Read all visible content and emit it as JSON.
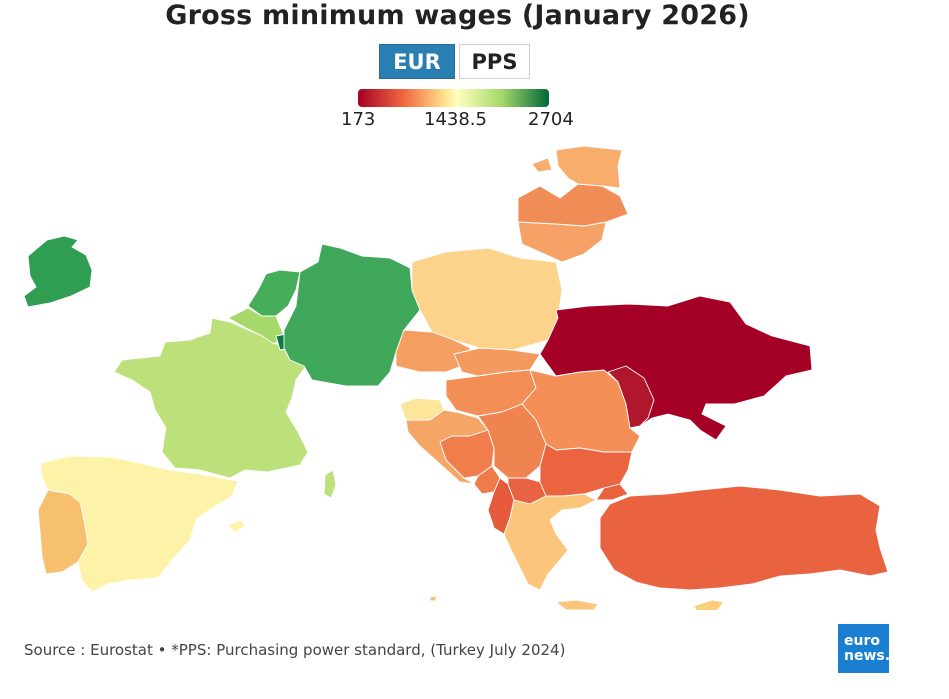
{
  "title": "Gross minimum wages (January 2026)",
  "toggles": {
    "eur": "EUR",
    "pps": "PPS",
    "selected": "EUR"
  },
  "legend": {
    "min_label": "173",
    "mid_label": "1438.5",
    "max_label": "2704",
    "min": 173,
    "mid": 1438.5,
    "max": 2704,
    "colors": [
      "#a50026",
      "#f46d43",
      "#fee08b",
      "#ffffbf",
      "#a6d96a",
      "#006837"
    ]
  },
  "source": "Source : Eurostat • *PPS: Purchasing power standard, (Turkey July 2024)",
  "logo": {
    "line1": "euro",
    "line2": "news."
  },
  "countries": {
    "ireland": "#2f9e53",
    "france": "#bde17a",
    "spain": "#fdf3a8",
    "portugal": "#f7c06e",
    "belgium": "#a6d96a",
    "netherlands": "#46ae5a",
    "luxembourg": "#0e7a42",
    "germany": "#3ea75a",
    "poland": "#fdd28a",
    "lithuania": "#f6a266",
    "latvia": "#f08d56",
    "estonia": "#f8ad6c",
    "czechia": "#f59e61",
    "slovakia": "#f49a5f",
    "hungary": "#f28e56",
    "romania": "#f48f58",
    "bulgaria": "#e9643f",
    "croatia": "#f5a665",
    "slovenia": "#fde69a",
    "serbia": "#ef8450",
    "bosnia": "#ef7e4c",
    "montenegro": "#ef7b4a",
    "albania": "#e55a3a",
    "north-macedonia": "#e86342",
    "greece": "#fbc57b",
    "turkey": "#ea6340",
    "ukraine": "#a50026",
    "moldova": "#b0172d",
    "malta": "#f7be6b",
    "cyprus": "#fbcd7c"
  }
}
